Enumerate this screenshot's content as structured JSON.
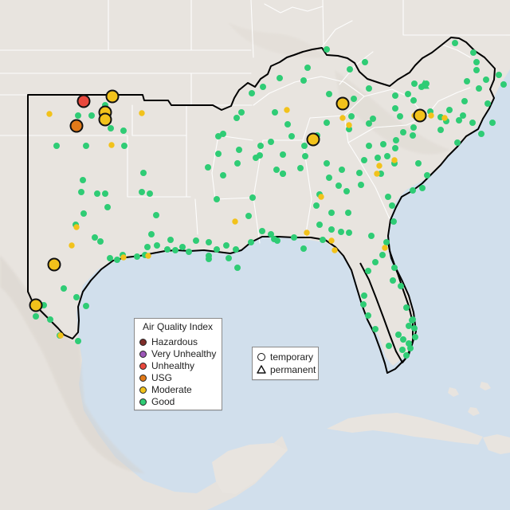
{
  "map": {
    "colors": {
      "land": "#e8e4df",
      "land_shadow": "#ded9d3",
      "water": "#d1dfec",
      "state_border": "#ffffff",
      "region_border": "#000000",
      "mountain": "#d8d2ca"
    }
  },
  "legend": {
    "title": "Air Quality Index",
    "items": [
      {
        "label": "Hazardous",
        "color": "#7e2d2a"
      },
      {
        "label": "Very Unhealthy",
        "color": "#9d57b8"
      },
      {
        "label": "Unhealthy",
        "color": "#e9483d"
      },
      {
        "label": "USG",
        "color": "#e27a19"
      },
      {
        "label": "Moderate",
        "color": "#f2c21b"
      },
      {
        "label": "Good",
        "color": "#2fcc75"
      }
    ]
  },
  "site_type_legend": {
    "items": [
      {
        "label": "temporary",
        "symbol": "circle-icon"
      },
      {
        "label": "permanent",
        "symbol": "triangle-icon"
      }
    ]
  }
}
